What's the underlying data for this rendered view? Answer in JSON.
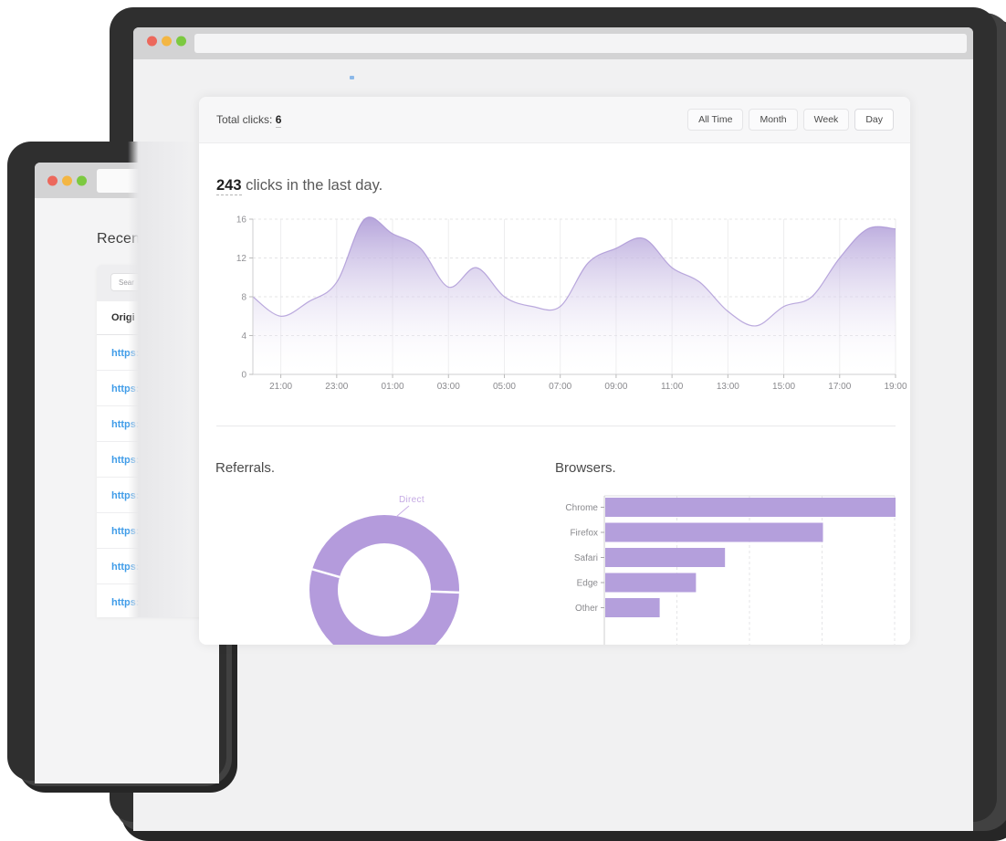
{
  "front_window": {
    "card_header": {
      "total_label": "Total clicks:",
      "total_value": "6",
      "filter_buttons": [
        "All Time",
        "Month",
        "Week",
        "Day"
      ],
      "active_filter": "Day"
    },
    "headline": {
      "count": "243",
      "suffix": " clicks in the last day."
    },
    "sections": {
      "referrals_title": "Referrals.",
      "browsers_title": "Browsers."
    },
    "donut_label": "Direct"
  },
  "back_window": {
    "heading": "Recen",
    "search_placeholder": "Sear",
    "table_header": "Origi",
    "rows": [
      "https:",
      "https:",
      "https:",
      "https:",
      "https:",
      "https:",
      "https:",
      "https:"
    ]
  },
  "chart_data": [
    {
      "type": "area",
      "title": "243 clicks in the last day.",
      "x": [
        "20:00",
        "21:00",
        "22:00",
        "23:00",
        "00:00",
        "01:00",
        "02:00",
        "03:00",
        "04:00",
        "05:00",
        "06:00",
        "07:00",
        "08:00",
        "09:00",
        "10:00",
        "11:00",
        "12:00",
        "13:00",
        "14:00",
        "15:00",
        "16:00",
        "17:00",
        "18:00",
        "19:00"
      ],
      "values": [
        8,
        6,
        7.5,
        9.5,
        16,
        14.5,
        13,
        9,
        11,
        8,
        7,
        7,
        11.5,
        13,
        14,
        11,
        9.5,
        6.5,
        5,
        7,
        8,
        12,
        15,
        15
      ],
      "x_tick_labels": [
        "21:00",
        "23:00",
        "01:00",
        "03:00",
        "05:00",
        "07:00",
        "09:00",
        "11:00",
        "13:00",
        "15:00",
        "17:00",
        "19:00"
      ],
      "ylim": [
        0,
        16
      ],
      "yticks": [
        0,
        4,
        8,
        12,
        16
      ],
      "grid": true,
      "fill_color": "#b2a0d9",
      "stroke_color": "#a58fd3"
    },
    {
      "type": "pie",
      "title": "Referrals.",
      "labels": [
        "Direct"
      ],
      "segments": [
        {
          "label": "Direct",
          "start_deg": -2,
          "end_deg": 164
        },
        {
          "label": "",
          "start_deg": 164,
          "end_deg": 358
        }
      ],
      "color": "#b49bdc",
      "donut": true
    },
    {
      "type": "bar",
      "title": "Browsers.",
      "orientation": "horizontal",
      "categories": [
        "Chrome",
        "Firefox",
        "Safari",
        "Edge",
        "Other"
      ],
      "values": [
        80,
        60,
        33,
        25,
        15
      ],
      "xlim": [
        0,
        80
      ],
      "grid": true,
      "bar_color": "#b49fdc"
    }
  ],
  "colors": {
    "accent_purple": "#b49fdc",
    "link_blue": "#3f9ce8",
    "traffic_red": "#ec685c",
    "traffic_yellow": "#f3b643",
    "traffic_green": "#7cc940",
    "titlebar_gray": "#d3d3d4",
    "page_bg": "#f1f1f2"
  }
}
